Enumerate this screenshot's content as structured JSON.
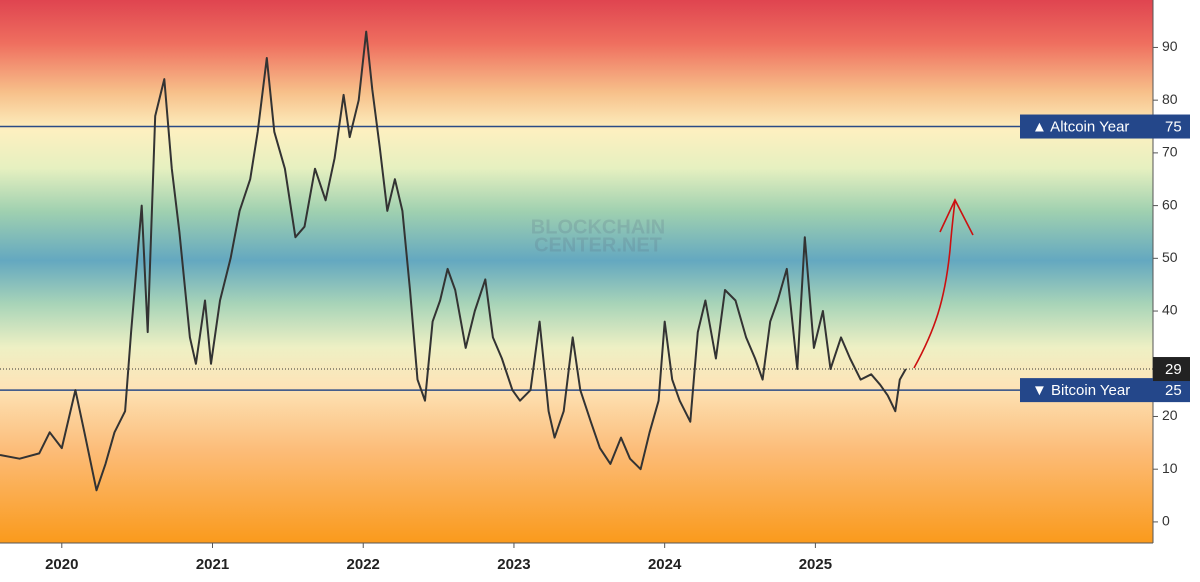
{
  "chart_data": {
    "type": "line",
    "color": "#333333",
    "watermark": [
      "BLOCKCHAIN",
      "CENTER.NET"
    ],
    "x": [
      2019.59,
      2019.72,
      2019.85,
      2019.92,
      2020.0,
      2020.09,
      2020.15,
      2020.23,
      2020.29,
      2020.35,
      2020.42,
      2020.46,
      2020.53,
      2020.57,
      2020.62,
      2020.68,
      2020.73,
      2020.78,
      2020.85,
      2020.89,
      2020.95,
      2020.99,
      2021.05,
      2021.12,
      2021.18,
      2021.25,
      2021.3,
      2021.36,
      2021.41,
      2021.48,
      2021.55,
      2021.61,
      2021.68,
      2021.75,
      2021.81,
      2021.87,
      2021.91,
      2021.97,
      2022.02,
      2022.06,
      2022.11,
      2022.16,
      2022.21,
      2022.26,
      2022.31,
      2022.36,
      2022.41,
      2022.46,
      2022.51,
      2022.56,
      2022.61,
      2022.68,
      2022.74,
      2022.81,
      2022.86,
      2022.92,
      2022.99,
      2023.04,
      2023.11,
      2023.17,
      2023.23,
      2023.27,
      2023.33,
      2023.39,
      2023.44,
      2023.51,
      2023.57,
      2023.64,
      2023.71,
      2023.77,
      2023.84,
      2023.9,
      2023.96,
      2024.0,
      2024.05,
      2024.1,
      2024.17,
      2024.22,
      2024.27,
      2024.34,
      2024.4,
      2024.47,
      2024.54,
      2024.6,
      2024.65,
      2024.7,
      2024.75,
      2024.81,
      2024.88,
      2024.93,
      2024.99,
      2025.05,
      2025.1,
      2025.17,
      2025.23,
      2025.3,
      2025.37,
      2025.43,
      2025.48,
      2025.53,
      2025.56,
      2025.6
    ],
    "values": [
      12.7,
      12,
      13,
      17,
      14,
      25,
      17,
      6,
      11,
      17,
      21,
      36,
      60,
      36,
      77,
      84,
      67,
      55,
      35,
      30,
      42,
      30,
      42,
      50,
      59,
      65,
      74,
      88,
      74,
      67,
      54,
      56,
      67,
      61,
      69,
      81,
      73,
      80,
      93,
      82,
      71,
      59,
      65,
      59,
      44,
      27,
      23,
      38,
      42,
      48,
      44,
      33,
      40,
      46,
      35,
      31,
      25,
      23,
      25,
      38,
      21,
      16,
      21,
      35,
      25,
      19,
      14,
      11,
      16,
      12,
      10,
      17,
      23,
      38,
      27,
      23,
      19,
      36,
      42,
      31,
      44,
      42,
      35,
      31,
      27,
      38,
      42,
      48,
      29,
      54,
      33,
      40,
      29,
      35,
      31,
      27,
      28,
      26,
      24,
      21,
      27,
      29
    ],
    "xlim": [
      2019.59,
      2027.24
    ],
    "xticks": [
      2020,
      2021,
      2022,
      2023,
      2024,
      2025
    ],
    "ylim": [
      -4,
      99
    ],
    "yticks": [
      0,
      10,
      20,
      30,
      40,
      50,
      60,
      70,
      80,
      90
    ],
    "reference_lines": [
      {
        "value": 75,
        "label": "▲ Altcoin Year"
      },
      {
        "value": 25,
        "label": "▼ Bitcoin Year"
      }
    ],
    "current_value": 29
  }
}
